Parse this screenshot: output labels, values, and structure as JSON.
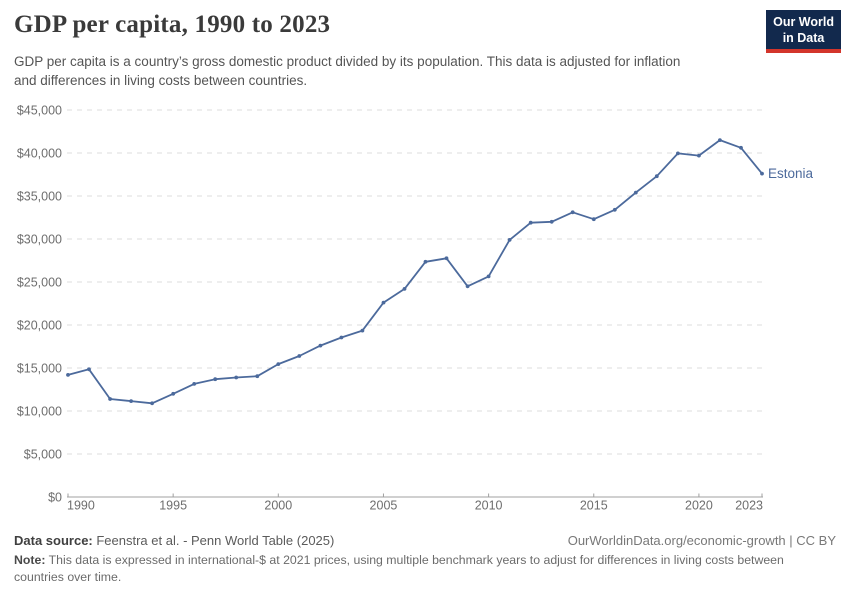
{
  "header": {
    "title": "GDP per capita, 1990 to 2023",
    "subtitle": "GDP per capita is a country’s gross domestic product divided by its population. This data is adjusted for inflation and differences in living costs between countries.",
    "logo": {
      "line1": "Our World",
      "line2": "in Data",
      "bg_color": "#12294D",
      "accent_color": "#D3352B"
    }
  },
  "chart_data": {
    "type": "line",
    "title": "GDP per capita, 1990 to 2023",
    "xlabel": "",
    "ylabel": "",
    "xlim": [
      1990,
      2023
    ],
    "ylim": [
      0,
      45000
    ],
    "x_ticks": [
      1990,
      1995,
      2000,
      2005,
      2010,
      2015,
      2020,
      2023
    ],
    "y_ticks": [
      0,
      5000,
      10000,
      15000,
      20000,
      25000,
      30000,
      35000,
      40000,
      45000
    ],
    "y_tick_prefix": "$",
    "grid": "horizontal-dashed",
    "legend_position": "end-of-line-label",
    "colors": {
      "grid": "#dcdcdc",
      "axis": "#a0a0a0",
      "tick_label": "#6e6e6e"
    },
    "series": [
      {
        "name": "Estonia",
        "color": "#4C6A9C",
        "x": [
          1990,
          1991,
          1992,
          1993,
          1994,
          1995,
          1996,
          1997,
          1998,
          1999,
          2000,
          2001,
          2002,
          2003,
          2004,
          2005,
          2006,
          2007,
          2008,
          2009,
          2010,
          2011,
          2012,
          2013,
          2014,
          2015,
          2016,
          2017,
          2018,
          2019,
          2020,
          2021,
          2022,
          2023
        ],
        "values": [
          14200,
          14850,
          11400,
          11150,
          10900,
          12000,
          13150,
          13700,
          13900,
          14050,
          15450,
          16400,
          17600,
          18550,
          19350,
          22600,
          24200,
          27350,
          27750,
          24500,
          25650,
          29900,
          31900,
          32000,
          33100,
          32300,
          33400,
          35400,
          37300,
          39950,
          39700,
          41500,
          40600,
          37600
        ]
      }
    ]
  },
  "footer": {
    "source_label": "Data source:",
    "source_text": " Feenstra et al. - Penn World Table (2025)",
    "link_text": "OurWorldinData.org/economic-growth | CC BY",
    "note_label": "Note:",
    "note_text": " This data is expressed in international-$ at 2021 prices, using multiple benchmark years to adjust for differences in living costs between countries over time."
  }
}
